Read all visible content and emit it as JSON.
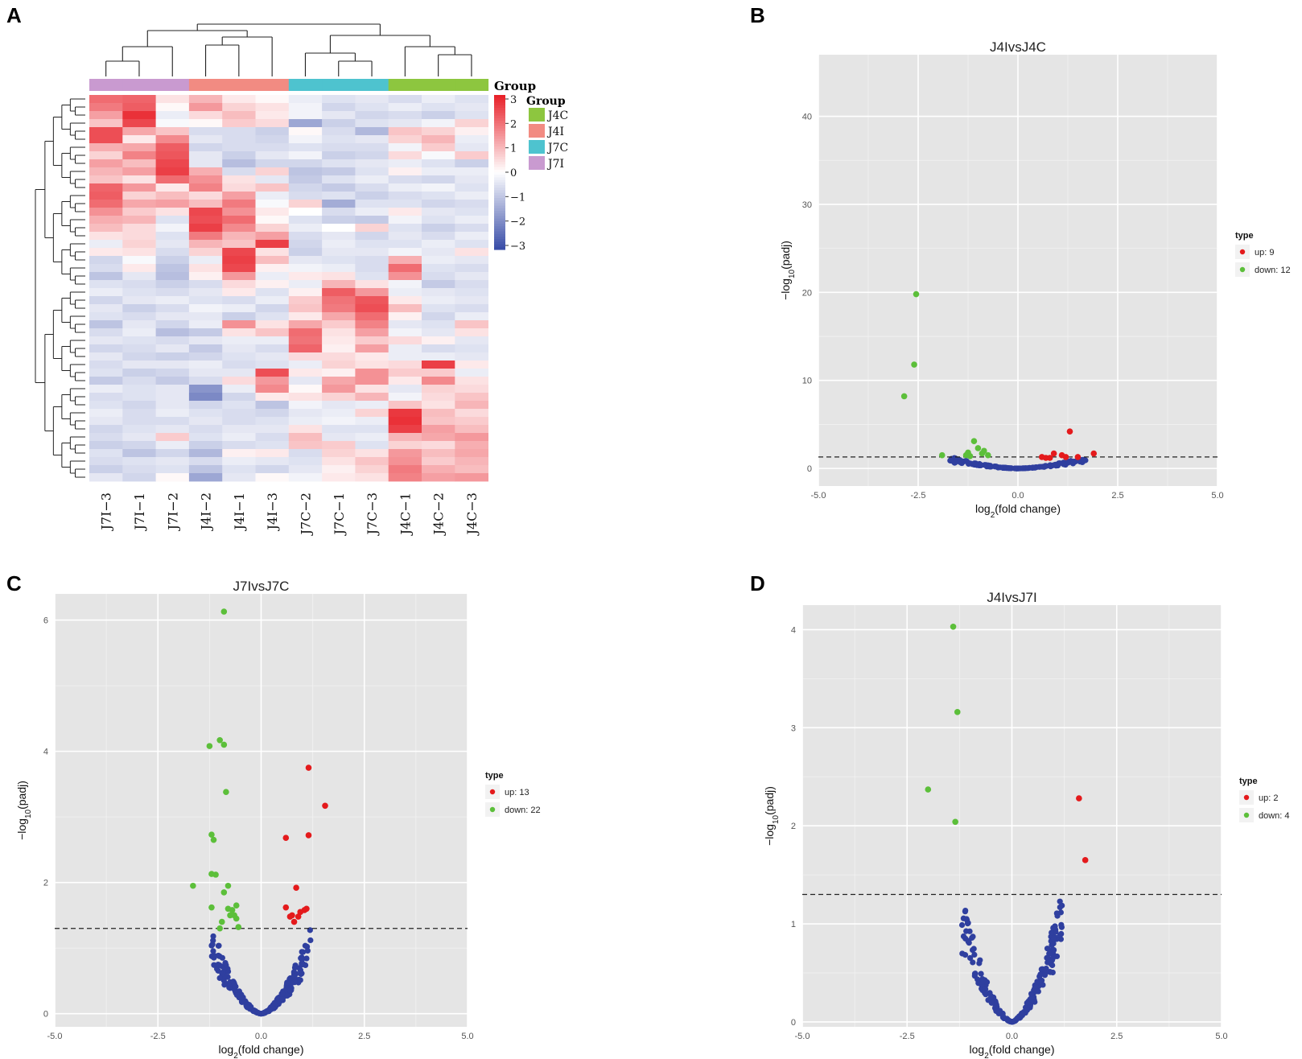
{
  "panel_labels": [
    "A",
    "B",
    "C",
    "D"
  ],
  "colors": {
    "up": "#e41a1c",
    "down": "#5cbf3a",
    "nonsig": "#2f3f9f",
    "panel_bg": "#e5e5e5",
    "grid": "#ffffff",
    "hm_low": "#3a4ea8",
    "hm_mid": "#ffffff",
    "hm_high": "#e8222a"
  },
  "chart_data": [
    {
      "type": "heatmap",
      "panel": "A",
      "columns": [
        "J7I−3",
        "J7I−1",
        "J7I−2",
        "J4I−2",
        "J4I−1",
        "J4I−3",
        "J7C−2",
        "J7C−1",
        "J7C−3",
        "J4C−1",
        "J4C−2",
        "J4C−3"
      ],
      "column_groups": [
        "J7I",
        "J7I",
        "J7I",
        "J4I",
        "J4I",
        "J4I",
        "J7C",
        "J7C",
        "J7C",
        "J4C",
        "J4C",
        "J4C"
      ],
      "group_bar_label": "Group",
      "legend": {
        "title": "Group",
        "items": [
          {
            "label": "J4C",
            "color": "#8dc63f"
          },
          {
            "label": "J4I",
            "color": "#f28b82"
          },
          {
            "label": "J7C",
            "color": "#4ec3cf"
          },
          {
            "label": "J7I",
            "color": "#c99ad0"
          }
        ]
      },
      "colorbar": {
        "ticks": [
          "3",
          "2",
          "1",
          "0",
          "−1",
          "−2",
          "−3"
        ],
        "range": [
          -3,
          3
        ]
      },
      "values": [
        [
          2.0,
          2.1,
          0.4,
          1.0,
          0.3,
          0.1,
          -0.3,
          -0.5,
          -0.4,
          -0.6,
          -0.3,
          -0.5
        ],
        [
          1.8,
          2.2,
          0.1,
          1.4,
          0.6,
          0.4,
          -0.2,
          -0.7,
          -0.5,
          -0.3,
          -0.5,
          -0.4
        ],
        [
          1.3,
          2.8,
          -0.3,
          0.5,
          0.9,
          0.3,
          -0.2,
          -0.4,
          -0.7,
          -0.6,
          -0.8,
          -0.5
        ],
        [
          0.8,
          2.5,
          -0.1,
          0.1,
          0.7,
          0.5,
          -1.5,
          -0.8,
          -0.5,
          -0.4,
          -0.2,
          0.6
        ],
        [
          2.4,
          1.2,
          0.8,
          -0.6,
          -0.6,
          -0.8,
          0.1,
          -0.6,
          -1.2,
          0.8,
          0.6,
          0.2
        ],
        [
          2.4,
          0.3,
          1.6,
          -0.4,
          -0.6,
          -0.7,
          -0.2,
          -0.5,
          -0.4,
          0.6,
          1.0,
          -0.3
        ],
        [
          1.1,
          1.2,
          2.2,
          -0.7,
          -0.6,
          -0.6,
          -0.5,
          -0.6,
          -0.6,
          -0.2,
          0.7,
          -0.4
        ],
        [
          0.6,
          1.7,
          2.3,
          -0.4,
          -0.8,
          -0.4,
          -0.2,
          -0.8,
          -0.7,
          0.5,
          -0.1,
          0.7
        ],
        [
          1.3,
          0.9,
          2.5,
          -0.4,
          -1.1,
          -0.7,
          -0.7,
          -0.5,
          -0.4,
          -0.3,
          -0.5,
          -0.8
        ],
        [
          1.0,
          1.3,
          2.6,
          1.1,
          -0.6,
          0.6,
          -1.0,
          -0.9,
          -0.5,
          0.2,
          -0.3,
          -0.3
        ],
        [
          0.8,
          0.4,
          2.0,
          1.5,
          0.4,
          -0.4,
          -0.9,
          -0.5,
          -0.3,
          -0.6,
          -0.7,
          -0.4
        ],
        [
          2.1,
          1.4,
          0.3,
          1.7,
          0.5,
          0.8,
          -0.7,
          -0.9,
          -0.6,
          -0.3,
          -0.2,
          -0.5
        ],
        [
          2.2,
          0.6,
          0.9,
          0.5,
          1.3,
          -0.3,
          -0.6,
          -0.5,
          -0.8,
          -0.6,
          -0.5,
          -0.3
        ],
        [
          2.0,
          1.2,
          1.3,
          0.9,
          1.8,
          -0.1,
          0.6,
          -1.4,
          -0.5,
          -0.5,
          -0.7,
          -0.6
        ],
        [
          1.5,
          0.7,
          0.4,
          2.5,
          1.5,
          0.3,
          0.0,
          -0.6,
          -0.3,
          0.3,
          -0.4,
          -0.5
        ],
        [
          1.1,
          1.0,
          -0.5,
          2.4,
          2.0,
          0.1,
          -0.5,
          -0.8,
          -0.9,
          -0.2,
          -0.5,
          -0.3
        ],
        [
          0.9,
          0.5,
          -0.2,
          2.6,
          1.6,
          0.6,
          -0.3,
          0.0,
          0.6,
          -0.5,
          -0.8,
          -0.6
        ],
        [
          0.4,
          0.5,
          -0.5,
          1.8,
          1.0,
          1.3,
          -0.6,
          -0.4,
          -0.7,
          -0.4,
          -0.6,
          -0.3
        ],
        [
          -0.3,
          0.6,
          -0.4,
          1.0,
          0.8,
          2.6,
          -0.7,
          -0.3,
          -0.5,
          -0.5,
          -0.3,
          -0.5
        ],
        [
          0.3,
          0.4,
          -0.6,
          0.6,
          2.5,
          0.4,
          -0.8,
          -0.4,
          -0.4,
          -0.2,
          -0.4,
          0.4
        ],
        [
          -0.7,
          -0.1,
          -0.8,
          -0.3,
          2.6,
          0.9,
          -0.4,
          -0.5,
          -0.6,
          1.1,
          -0.3,
          -0.4
        ],
        [
          -0.6,
          0.3,
          -1.0,
          0.4,
          2.5,
          0.2,
          -0.2,
          -0.3,
          -0.6,
          2.0,
          -0.5,
          -0.6
        ],
        [
          -1.0,
          -0.4,
          -1.1,
          0.2,
          1.4,
          -0.3,
          0.3,
          0.4,
          -0.5,
          1.5,
          -0.6,
          -0.4
        ],
        [
          -0.5,
          -0.6,
          -0.8,
          -0.6,
          0.5,
          0.2,
          -0.3,
          1.0,
          0.4,
          -0.2,
          -0.9,
          -0.6
        ],
        [
          -0.3,
          -0.5,
          -0.6,
          -0.4,
          0.3,
          -0.5,
          0.2,
          2.2,
          1.4,
          -0.3,
          -0.4,
          -0.5
        ],
        [
          -0.7,
          -0.4,
          -0.3,
          -0.5,
          -0.6,
          -0.3,
          0.7,
          1.9,
          2.3,
          0.3,
          -0.3,
          -0.4
        ],
        [
          -0.4,
          -0.8,
          -0.6,
          -0.2,
          -0.3,
          -0.7,
          0.8,
          1.8,
          2.4,
          0.9,
          -0.5,
          -0.6
        ],
        [
          -0.5,
          -0.6,
          -0.4,
          -0.4,
          -0.8,
          -0.5,
          0.3,
          1.2,
          2.0,
          0.2,
          -0.7,
          -0.3
        ],
        [
          -1.0,
          -0.4,
          -0.7,
          -0.3,
          1.5,
          0.4,
          1.2,
          0.7,
          1.7,
          -0.4,
          -0.5,
          0.8
        ],
        [
          -0.6,
          -0.3,
          -1.1,
          -0.9,
          0.4,
          0.8,
          2.0,
          0.4,
          1.3,
          -0.2,
          -0.4,
          0.4
        ],
        [
          -0.4,
          -0.5,
          -0.6,
          -0.4,
          -0.3,
          -0.3,
          1.9,
          0.3,
          0.7,
          0.5,
          0.2,
          -0.4
        ],
        [
          -0.7,
          -0.6,
          -0.4,
          -0.9,
          -0.4,
          -0.6,
          2.1,
          0.2,
          1.3,
          -0.3,
          -0.6,
          -0.5
        ],
        [
          -0.4,
          -0.7,
          -0.8,
          -0.7,
          -0.5,
          -0.4,
          0.5,
          0.5,
          0.3,
          -0.3,
          -0.3,
          -0.4
        ],
        [
          -0.6,
          -0.4,
          -0.4,
          -0.3,
          -0.6,
          -0.5,
          -0.3,
          0.6,
          0.4,
          0.5,
          2.6,
          0.3
        ],
        [
          -0.5,
          -0.8,
          -0.7,
          -0.4,
          -0.4,
          2.4,
          0.3,
          0.2,
          1.5,
          0.7,
          0.7,
          -0.3
        ],
        [
          -0.9,
          -0.6,
          -0.9,
          -0.6,
          0.5,
          1.4,
          -0.4,
          1.2,
          1.5,
          0.3,
          1.6,
          0.4
        ],
        [
          -0.3,
          -0.5,
          -0.4,
          -1.8,
          -0.3,
          1.6,
          0.1,
          1.4,
          0.4,
          -0.4,
          0.6,
          0.5
        ],
        [
          -0.6,
          -0.5,
          -0.4,
          -2.0,
          -0.7,
          0.3,
          0.4,
          0.6,
          1.0,
          -0.2,
          0.5,
          0.8
        ],
        [
          -0.5,
          -0.7,
          -0.4,
          -0.7,
          -0.5,
          -1.0,
          -0.2,
          -0.4,
          -0.3,
          0.8,
          0.4,
          1.0
        ],
        [
          -0.3,
          -0.6,
          -0.3,
          -0.5,
          -0.6,
          -0.7,
          -0.4,
          -0.3,
          0.6,
          2.7,
          0.9,
          0.5
        ],
        [
          -0.4,
          -0.6,
          -0.6,
          -0.4,
          -0.6,
          -0.5,
          -0.3,
          -0.2,
          -0.3,
          2.8,
          0.8,
          0.7
        ],
        [
          -0.7,
          -0.5,
          -0.4,
          -0.6,
          -0.4,
          -0.4,
          0.4,
          -0.5,
          -0.5,
          2.6,
          1.3,
          0.9
        ],
        [
          -0.6,
          -0.4,
          0.7,
          -0.5,
          -0.3,
          -0.6,
          0.9,
          -0.4,
          -0.3,
          1.0,
          1.2,
          1.4
        ],
        [
          -0.8,
          -0.7,
          -0.3,
          -0.8,
          -0.6,
          -0.5,
          0.8,
          0.7,
          -0.5,
          0.6,
          0.5,
          1.1
        ],
        [
          -0.5,
          -1.0,
          -0.7,
          -1.2,
          0.2,
          0.3,
          -0.6,
          0.6,
          0.4,
          1.4,
          0.9,
          1.2
        ],
        [
          -0.6,
          -0.5,
          -0.4,
          -0.6,
          -0.3,
          -0.4,
          -0.5,
          0.4,
          0.8,
          1.5,
          0.7,
          1.0
        ],
        [
          -0.8,
          -0.6,
          -0.5,
          -1.0,
          -0.5,
          -0.7,
          -0.4,
          0.2,
          0.6,
          1.8,
          1.1,
          0.9
        ],
        [
          -0.4,
          -0.7,
          0.1,
          -1.5,
          -0.4,
          0.1,
          -0.2,
          0.3,
          0.4,
          1.7,
          1.3,
          1.4
        ]
      ]
    },
    {
      "type": "scatter",
      "panel": "B",
      "title": "J4IvsJ4C",
      "xlabel": "log2(fold change)",
      "ylabel": "−log10(padj)",
      "xlim": [
        -5,
        5
      ],
      "ylim": [
        -2,
        47
      ],
      "xticks": [
        -5,
        -2.5,
        0,
        2.5,
        5
      ],
      "xtick_labels": [
        "-5.0",
        "-2.5",
        "0.0",
        "2.5",
        "5.0"
      ],
      "yticks": [
        0,
        10,
        20,
        30,
        40
      ],
      "ytick_labels": [
        "0",
        "10",
        "20",
        "30",
        "40"
      ],
      "threshold": 1.3,
      "legend": {
        "title": "type",
        "up": "up: 9",
        "down": "down: 12"
      },
      "up": [
        [
          1.3,
          4.2
        ],
        [
          1.9,
          1.7
        ],
        [
          0.9,
          1.7
        ],
        [
          1.1,
          1.5
        ],
        [
          0.6,
          1.3
        ],
        [
          0.7,
          1.2
        ],
        [
          1.2,
          1.3
        ],
        [
          1.5,
          1.3
        ],
        [
          0.8,
          1.2
        ]
      ],
      "down": [
        [
          -2.55,
          19.8
        ],
        [
          -2.6,
          11.8
        ],
        [
          -2.85,
          8.2
        ],
        [
          -1.9,
          1.5
        ],
        [
          -1.25,
          1.8
        ],
        [
          -1.1,
          3.1
        ],
        [
          -1.0,
          2.3
        ],
        [
          -0.85,
          2.0
        ],
        [
          -1.3,
          1.5
        ],
        [
          -0.75,
          1.5
        ],
        [
          -1.2,
          1.4
        ],
        [
          -0.9,
          1.7
        ]
      ]
    },
    {
      "type": "scatter",
      "panel": "C",
      "title": "J7IvsJ7C",
      "xlabel": "log2(fold change)",
      "ylabel": "−log10(padj)",
      "xlim": [
        -5,
        5
      ],
      "ylim": [
        -0.2,
        6.4
      ],
      "xticks": [
        -5,
        -2.5,
        0,
        2.5,
        5
      ],
      "xtick_labels": [
        "-5.0",
        "-2.5",
        "0.0",
        "2.5",
        "5.0"
      ],
      "yticks": [
        0,
        2,
        4,
        6
      ],
      "ytick_labels": [
        "0",
        "2",
        "4",
        "6"
      ],
      "threshold": 1.3,
      "legend": {
        "title": "type",
        "up": "up: 13",
        "down": "down: 22"
      },
      "up": [
        [
          1.15,
          3.75
        ],
        [
          1.55,
          3.17
        ],
        [
          1.15,
          2.72
        ],
        [
          0.6,
          2.68
        ],
        [
          0.85,
          1.92
        ],
        [
          0.6,
          1.62
        ],
        [
          0.75,
          1.5
        ],
        [
          0.8,
          1.4
        ],
        [
          0.9,
          1.48
        ],
        [
          0.7,
          1.48
        ],
        [
          1.05,
          1.58
        ],
        [
          0.95,
          1.55
        ],
        [
          1.1,
          1.6
        ]
      ],
      "down": [
        [
          -0.9,
          6.13
        ],
        [
          -1.0,
          4.17
        ],
        [
          -0.9,
          4.1
        ],
        [
          -1.25,
          4.08
        ],
        [
          -0.85,
          3.38
        ],
        [
          -1.2,
          2.73
        ],
        [
          -1.15,
          2.65
        ],
        [
          -1.2,
          2.13
        ],
        [
          -1.1,
          2.12
        ],
        [
          -0.8,
          1.95
        ],
        [
          -0.9,
          1.85
        ],
        [
          -1.65,
          1.95
        ],
        [
          -0.6,
          1.65
        ],
        [
          -0.7,
          1.58
        ],
        [
          -0.75,
          1.5
        ],
        [
          -1.2,
          1.62
        ],
        [
          -0.95,
          1.4
        ],
        [
          -0.55,
          1.32
        ],
        [
          -0.65,
          1.5
        ],
        [
          -0.6,
          1.45
        ],
        [
          -1.0,
          1.3
        ],
        [
          -0.8,
          1.6
        ]
      ]
    },
    {
      "type": "scatter",
      "panel": "D",
      "title": "J4IvsJ7I",
      "xlabel": "log2(fold change)",
      "ylabel": "−log10(padj)",
      "xlim": [
        -5,
        5
      ],
      "ylim": [
        -0.05,
        4.25
      ],
      "xticks": [
        -5,
        -2.5,
        0,
        2.5,
        5
      ],
      "xtick_labels": [
        "-5.0",
        "-2.5",
        "0.0",
        "2.5",
        "5.0"
      ],
      "yticks": [
        0,
        1,
        2,
        3,
        4
      ],
      "ytick_labels": [
        "0",
        "1",
        "2",
        "3",
        "4"
      ],
      "threshold": 1.3,
      "legend": {
        "title": "type",
        "up": "up: 2",
        "down": "down: 4"
      },
      "up": [
        [
          1.6,
          2.28
        ],
        [
          1.75,
          1.65
        ]
      ],
      "down": [
        [
          -1.4,
          4.03
        ],
        [
          -1.3,
          3.16
        ],
        [
          -2.0,
          2.37
        ],
        [
          -1.35,
          2.04
        ]
      ]
    }
  ]
}
